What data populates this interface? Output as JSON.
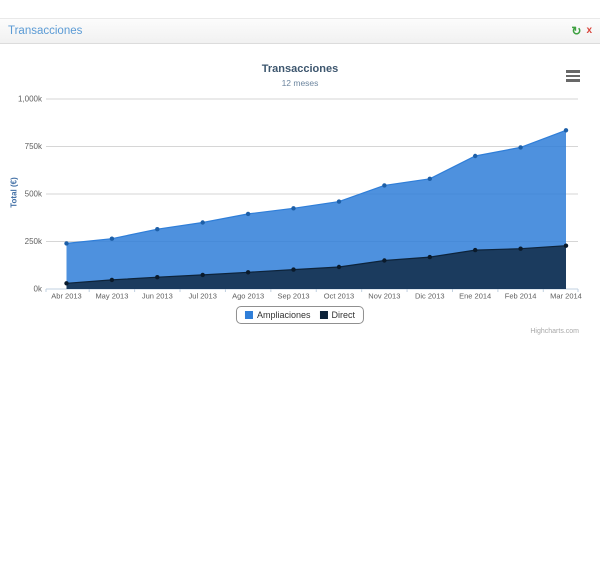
{
  "widget": {
    "title": "Transacciones",
    "refresh_icon": "↻",
    "close_icon": "x",
    "title_color": "#5b9bd5",
    "refresh_color": "#3fa142",
    "close_color": "#d9453c"
  },
  "chart_data": {
    "type": "area",
    "title": "Transacciones",
    "subtitle": "12 meses",
    "ylabel": "Total (€)",
    "xlabel": "",
    "values_unit": "thousands of €",
    "ylim": [
      0,
      1000
    ],
    "grid": true,
    "legend_position": "bottom",
    "yticks": [
      {
        "value": 0,
        "label": "0k"
      },
      {
        "value": 250,
        "label": "250k"
      },
      {
        "value": 500,
        "label": "500k"
      },
      {
        "value": 750,
        "label": "750k"
      },
      {
        "value": 1000,
        "label": "1,000k"
      }
    ],
    "categories": [
      "Abr 2013",
      "May 2013",
      "Jun 2013",
      "Jul 2013",
      "Ago 2013",
      "Sep 2013",
      "Oct 2013",
      "Nov 2013",
      "Dic 2013",
      "Ene 2014",
      "Feb 2014",
      "Mar 2014"
    ],
    "series": [
      {
        "name": "Ampliaciones",
        "color": "#2f7ed8",
        "fill_color": "rgba(47,126,216,0.85)",
        "marker_color": "#1d5fa8",
        "values_k": [
          240,
          265,
          315,
          350,
          395,
          425,
          460,
          545,
          580,
          700,
          745,
          835
        ]
      },
      {
        "name": "Direct",
        "color": "#0d233a",
        "fill_color": "rgba(13,35,58,0.78)",
        "marker_color": "#0a1a2b",
        "values_k": [
          30,
          48,
          62,
          74,
          88,
          102,
          116,
          150,
          168,
          205,
          212,
          228
        ]
      }
    ],
    "credits": "Highcharts.com"
  }
}
